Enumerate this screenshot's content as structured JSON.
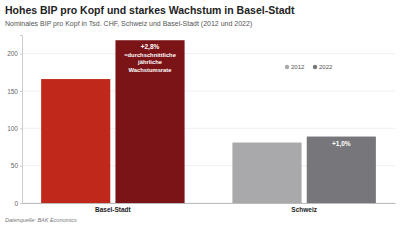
{
  "chart_data": {
    "type": "bar",
    "title": "Hohes BIP pro Kopf und starkes Wachstum in Basel-Stadt",
    "subtitle": "Nominales BIP pro Kopf in Tsd. CHF, Schweiz und Basel-Stadt (2012 und 2022)",
    "source": "Datenquelle: BAK Economics",
    "categories": [
      "Basel-Stadt",
      "Schweiz"
    ],
    "series": [
      {
        "name": "2012",
        "color": "#a9a9ac",
        "colors": [
          "#c0281c",
          "#a9a9ac"
        ],
        "values": [
          166,
          81
        ]
      },
      {
        "name": "2022",
        "color": "#77777b",
        "colors": [
          "#7b1417",
          "#77777b"
        ],
        "values": [
          218,
          89
        ]
      }
    ],
    "annotations": [
      {
        "text": [
          "+2,8%",
          "=durchschnittliche",
          "jährliche",
          "Wachstumsrate"
        ],
        "category": "Basel-Stadt",
        "series": "2022"
      },
      {
        "text": [
          "+1,0%"
        ],
        "category": "Schweiz",
        "series": "2022"
      }
    ],
    "ylim": [
      0,
      225
    ],
    "yticks": [
      0,
      50,
      100,
      150,
      200
    ],
    "grid": true,
    "legend": "top-right"
  }
}
